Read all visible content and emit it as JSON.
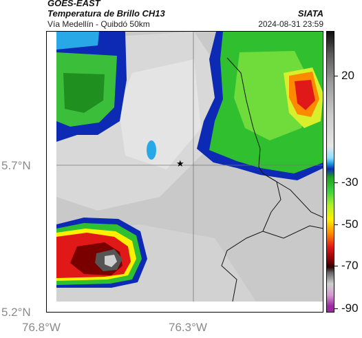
{
  "header": {
    "satellite": "GOES-EAST",
    "product": "Temperatura de Brillo CH13",
    "route": "Vía Medellín - Quibdó 50km",
    "agency": "SIATA",
    "timestamp": "2024-08-31 23:59"
  },
  "axes": {
    "y_ticks": [
      "5.7°N",
      "5.2°N"
    ],
    "x_ticks": [
      "76.8°W",
      "76.3°W"
    ]
  },
  "colorbar": {
    "labels": [
      "20",
      "-30",
      "-50",
      "-70",
      "-90"
    ]
  },
  "marker": {
    "symbol": "★"
  },
  "colors": {
    "cloud_gray": "#c9c9c9",
    "cold_blue": "#0d2ab5",
    "green": "#2fbf2f",
    "yellow": "#fff000",
    "red": "#d81818"
  }
}
